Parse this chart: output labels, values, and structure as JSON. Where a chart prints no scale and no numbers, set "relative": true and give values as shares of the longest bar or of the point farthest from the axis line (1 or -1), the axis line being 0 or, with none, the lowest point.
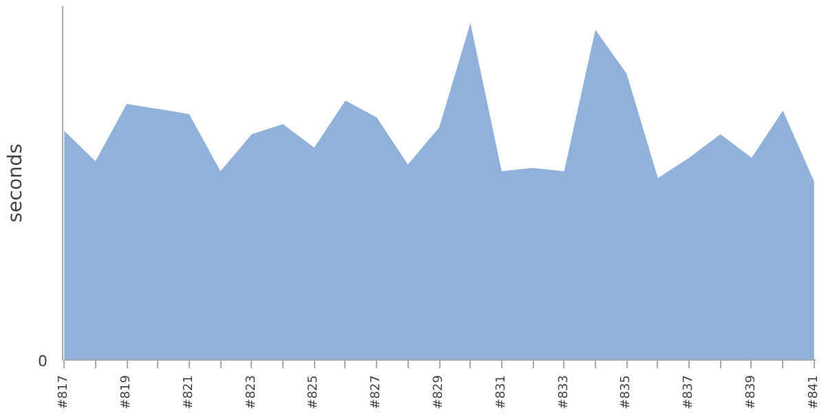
{
  "chart_data": {
    "type": "area",
    "relative": true,
    "ylabel": "seconds",
    "grid": false,
    "annotations": [
      "0"
    ],
    "categories": [
      "#817",
      null,
      "#819",
      null,
      "#821",
      null,
      "#823",
      null,
      "#825",
      null,
      "#827",
      null,
      "#829",
      null,
      "#831",
      null,
      "#833",
      null,
      "#835",
      null,
      "#837",
      null,
      "#839",
      null,
      "#841"
    ],
    "series": [
      {
        "color": "#8fb1da",
        "values": [
          0.68,
          0.59,
          0.76,
          0.745,
          0.73,
          0.56,
          0.67,
          0.7,
          0.63,
          0.77,
          0.72,
          0.58,
          0.69,
          1,
          0.56,
          0.57,
          0.56,
          0.98,
          0.85,
          0.54,
          0.6,
          0.67,
          0.6,
          0.74,
          0.53
        ]
      }
    ]
  }
}
